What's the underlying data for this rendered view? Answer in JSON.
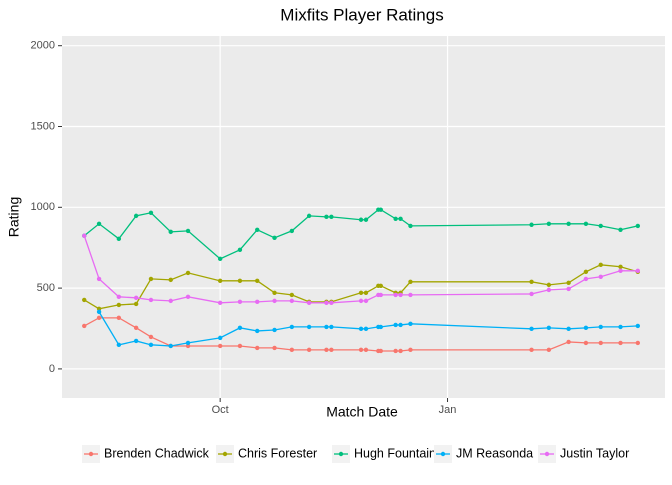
{
  "chart_data": {
    "type": "line",
    "title": "Mixfits Player Ratings",
    "x_label": "Match Date",
    "y_label": "Rating",
    "x": [
      -55,
      -49,
      -41,
      -34,
      -28,
      -20,
      -13,
      0,
      8,
      15,
      22,
      29,
      36,
      43,
      45,
      57,
      59,
      64,
      65,
      71,
      73,
      77,
      126,
      133,
      141,
      148,
      154,
      162,
      169
    ],
    "xlim": [
      -64,
      180
    ],
    "xticks": [
      {
        "value": 0,
        "label": "Oct"
      },
      {
        "value": 92,
        "label": "Jan"
      }
    ],
    "ylim": [
      -180,
      2060
    ],
    "yticks": [
      0,
      500,
      1000,
      1500,
      2000
    ],
    "grid": true,
    "legend": "bottom",
    "series": [
      {
        "name": "Brenden Chadwick",
        "color": "#F8766D",
        "values": [
          266,
          316,
          316,
          254,
          198,
          142,
          142,
          142,
          142,
          130,
          130,
          118,
          118,
          118,
          118,
          118,
          118,
          111,
          111,
          111,
          111,
          118,
          118,
          118,
          167,
          161,
          161,
          161,
          161
        ]
      },
      {
        "name": "Chris Forester",
        "color": "#A3A500",
        "values": [
          427,
          372,
          396,
          402,
          557,
          551,
          594,
          545,
          545,
          545,
          471,
          458,
          415,
          415,
          415,
          471,
          471,
          514,
          514,
          471,
          471,
          539,
          539,
          520,
          533,
          601,
          644,
          632,
          601
        ]
      },
      {
        "name": "Hugh Fountain",
        "color": "#00BF7D",
        "values": [
          824,
          898,
          805,
          947,
          966,
          848,
          854,
          681,
          737,
          861,
          811,
          854,
          947,
          941,
          941,
          923,
          923,
          985,
          985,
          929,
          929,
          885,
          892,
          898,
          898,
          898,
          885,
          861,
          885
        ]
      },
      {
        "name": "JM Reasonda",
        "color": "#00B0F6",
        "values": [
          null,
          353,
          149,
          173,
          149,
          142,
          161,
          192,
          254,
          235,
          241,
          260,
          260,
          260,
          260,
          248,
          248,
          260,
          260,
          272,
          272,
          279,
          248,
          254,
          248,
          254,
          260,
          260,
          266
        ]
      },
      {
        "name": "Justin Taylor",
        "color": "#E76BF3",
        "values": [
          824,
          557,
          446,
          440,
          427,
          421,
          446,
          409,
          415,
          415,
          421,
          421,
          409,
          409,
          409,
          421,
          421,
          458,
          458,
          458,
          458,
          458,
          464,
          489,
          495,
          557,
          570,
          607,
          607
        ]
      }
    ]
  }
}
